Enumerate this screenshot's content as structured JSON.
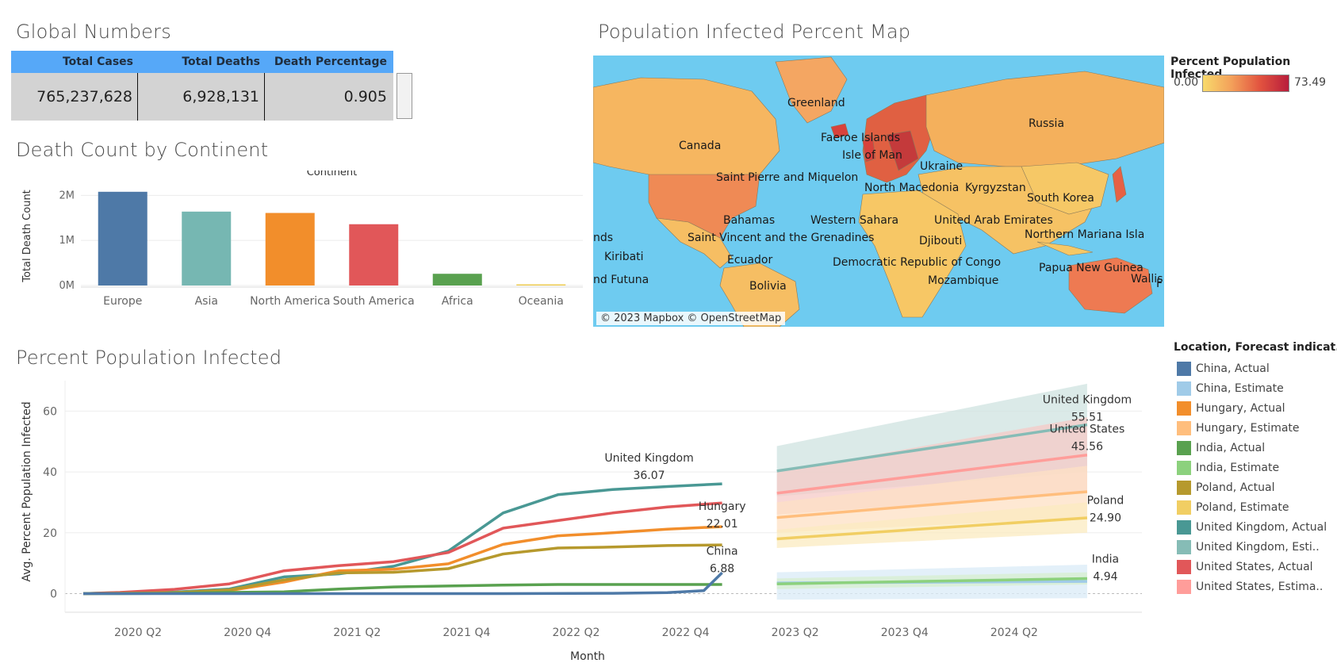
{
  "titles": {
    "global": "Global Numbers",
    "continent": "Death Count by Continent",
    "map": "Population Infected Percent Map",
    "infected": "Percent Population Infected"
  },
  "global_numbers": {
    "headers": [
      "Total Cases",
      "Total Deaths",
      "Death Percentage"
    ],
    "values": [
      "765,237,628",
      "6,928,131",
      "0.905"
    ]
  },
  "map": {
    "labels": [
      "Greenland",
      "Faeroe Islands",
      "Canada",
      "Russia",
      "Isle of Man",
      "Saint Pierre and Miquelon",
      "Ukraine",
      "North Macedonia",
      "Kyrgyzstan",
      "South Korea",
      "Bahamas",
      "Western Sahara",
      "United Arab Emirates",
      "nds",
      "Saint Vincent and the Grenadines",
      "Djibouti",
      "Northern Mariana Isla",
      "Kiribati",
      "Ecuador",
      "Democratic Republic of Congo",
      "Papua New Guinea",
      "nd Futuna",
      "Bolivia",
      "Mozambique",
      "Wallis a",
      "F"
    ],
    "credit": "© 2023 Mapbox © OpenStreetMap",
    "legend_title": "Percent Population Infected",
    "legend_min": "0.00",
    "legend_max": "73.49",
    "colors": {
      "low": "#f8da6c",
      "mid": "#e2533f",
      "high": "#b81d3c",
      "ocean": "#6ecbf0"
    }
  },
  "legend": {
    "title": "Location, Forecast indicat..",
    "items": [
      {
        "label": "China, Actual",
        "color": "#4e79a7"
      },
      {
        "label": "China, Estimate",
        "color": "#a0cbe8"
      },
      {
        "label": "Hungary, Actual",
        "color": "#f28e2b"
      },
      {
        "label": "Hungary, Estimate",
        "color": "#ffbe7d"
      },
      {
        "label": "India, Actual",
        "color": "#59a14f"
      },
      {
        "label": "India, Estimate",
        "color": "#8cd17d"
      },
      {
        "label": "Poland, Actual",
        "color": "#b6992d"
      },
      {
        "label": "Poland, Estimate",
        "color": "#f1ce63"
      },
      {
        "label": "United Kingdom, Actual",
        "color": "#499894"
      },
      {
        "label": "United Kingdom, Esti..",
        "color": "#86bcb6"
      },
      {
        "label": "United States, Actual",
        "color": "#e15759"
      },
      {
        "label": "United States, Estima..",
        "color": "#ff9d9a"
      }
    ]
  },
  "chart_data": [
    {
      "type": "bar",
      "title": "Continent",
      "ylabel": "Total Death Count",
      "categories": [
        "Europe",
        "Asia",
        "North America",
        "South America",
        "Africa",
        "Oceania"
      ],
      "values": [
        2080000,
        1640000,
        1610000,
        1360000,
        260000,
        25000
      ],
      "colors": [
        "#4e79a7",
        "#76b7b2",
        "#f28e2b",
        "#e15759",
        "#59a14f",
        "#edc948"
      ],
      "ylim": [
        0,
        2200000
      ],
      "yticks": [
        0,
        1000000,
        2000000
      ],
      "ytick_labels": [
        "0M",
        "1M",
        "2M"
      ]
    },
    {
      "type": "line",
      "xlabel": "Month",
      "ylabel": "Avg. Percent Population Infected",
      "x_tick_labels": [
        "2020 Q2",
        "2020 Q4",
        "2021 Q2",
        "2021 Q4",
        "2022 Q2",
        "2022 Q4",
        "2023 Q2",
        "2023 Q4",
        "2024 Q2"
      ],
      "ylim": [
        -3,
        70
      ],
      "yticks": [
        0,
        20,
        40,
        60
      ],
      "actual_series": [
        {
          "name": "United Kingdom, Actual",
          "color": "#499894",
          "points": [
            [
              "2020-02",
              0
            ],
            [
              "2020-04",
              0.3
            ],
            [
              "2020-07",
              0.5
            ],
            [
              "2020-10",
              1.5
            ],
            [
              "2021-01",
              5.5
            ],
            [
              "2021-04",
              6.5
            ],
            [
              "2021-07",
              9
            ],
            [
              "2021-10",
              14
            ],
            [
              "2022-01",
              26.5
            ],
            [
              "2022-04",
              32.5
            ],
            [
              "2022-07",
              34.2
            ],
            [
              "2022-10",
              35.2
            ],
            [
              "2023-01",
              36.07
            ]
          ]
        },
        {
          "name": "United States, Actual",
          "color": "#e15759",
          "points": [
            [
              "2020-02",
              0
            ],
            [
              "2020-04",
              0.4
            ],
            [
              "2020-07",
              1.4
            ],
            [
              "2020-10",
              3.2
            ],
            [
              "2021-01",
              7.5
            ],
            [
              "2021-04",
              9.2
            ],
            [
              "2021-07",
              10.5
            ],
            [
              "2021-10",
              13.5
            ],
            [
              "2022-01",
              21.5
            ],
            [
              "2022-04",
              24
            ],
            [
              "2022-07",
              26.5
            ],
            [
              "2022-10",
              28.5
            ],
            [
              "2023-01",
              29.8
            ]
          ]
        },
        {
          "name": "Hungary, Actual",
          "color": "#f28e2b",
          "points": [
            [
              "2020-02",
              0
            ],
            [
              "2020-04",
              0.1
            ],
            [
              "2020-07",
              0.3
            ],
            [
              "2020-10",
              1
            ],
            [
              "2021-01",
              3.8
            ],
            [
              "2021-04",
              7.5
            ],
            [
              "2021-07",
              8
            ],
            [
              "2021-10",
              9.8
            ],
            [
              "2022-01",
              16.2
            ],
            [
              "2022-04",
              19
            ],
            [
              "2022-07",
              20
            ],
            [
              "2022-10",
              21.2
            ],
            [
              "2023-01",
              22.01
            ]
          ]
        },
        {
          "name": "Poland, Actual",
          "color": "#b6992d",
          "points": [
            [
              "2020-02",
              0
            ],
            [
              "2020-04",
              0.1
            ],
            [
              "2020-07",
              0.3
            ],
            [
              "2020-10",
              1.2
            ],
            [
              "2021-01",
              4.5
            ],
            [
              "2021-04",
              6.8
            ],
            [
              "2021-07",
              7
            ],
            [
              "2021-10",
              8.2
            ],
            [
              "2022-01",
              13
            ],
            [
              "2022-04",
              15
            ],
            [
              "2022-07",
              15.3
            ],
            [
              "2022-10",
              15.8
            ],
            [
              "2023-01",
              16
            ]
          ]
        },
        {
          "name": "India, Actual",
          "color": "#59a14f",
          "points": [
            [
              "2020-02",
              0
            ],
            [
              "2020-04",
              0
            ],
            [
              "2020-07",
              0.1
            ],
            [
              "2020-10",
              0.4
            ],
            [
              "2021-01",
              0.6
            ],
            [
              "2021-04",
              1.5
            ],
            [
              "2021-07",
              2.2
            ],
            [
              "2021-10",
              2.5
            ],
            [
              "2022-01",
              2.8
            ],
            [
              "2022-04",
              3
            ],
            [
              "2022-07",
              3
            ],
            [
              "2022-10",
              3
            ],
            [
              "2023-01",
              3
            ]
          ]
        },
        {
          "name": "China, Actual",
          "color": "#4e79a7",
          "points": [
            [
              "2020-02",
              0
            ],
            [
              "2020-07",
              0
            ],
            [
              "2021-01",
              0
            ],
            [
              "2021-07",
              0
            ],
            [
              "2022-01",
              0
            ],
            [
              "2022-07",
              0.1
            ],
            [
              "2022-10",
              0.3
            ],
            [
              "2022-12",
              1
            ],
            [
              "2023-01",
              6.88
            ]
          ]
        }
      ],
      "estimate_series": [
        {
          "name": "United Kingdom, Estimate",
          "color": "#86bcb6",
          "band": "#cfe3e0",
          "start": [
            "2023-04",
            40.3
          ],
          "end": [
            "2024-09",
            55.51
          ],
          "band_start": [
            32,
            48.5
          ],
          "band_end": [
            40,
            69
          ]
        },
        {
          "name": "United States, Estimate",
          "color": "#ff9d9a",
          "band": "#f6c9c7",
          "start": [
            "2023-04",
            33
          ],
          "end": [
            "2024-09",
            45.56
          ],
          "band_start": [
            26,
            40
          ],
          "band_end": [
            33,
            58
          ]
        },
        {
          "name": "Hungary, Estimate",
          "color": "#ffbe7d",
          "band": "#fde0c4",
          "start": [
            "2023-04",
            25
          ],
          "end": [
            "2024-09",
            33.5
          ],
          "band_start": [
            20,
            30
          ],
          "band_end": [
            25,
            42
          ]
        },
        {
          "name": "Poland, Estimate",
          "color": "#f1ce63",
          "band": "#fbebc0",
          "start": [
            "2023-04",
            18
          ],
          "end": [
            "2024-09",
            24.9
          ],
          "band_start": [
            15,
            21
          ],
          "band_end": [
            20,
            30
          ]
        },
        {
          "name": "China, Estimate",
          "color": "#a0cbe8",
          "band": "#d9ebf7",
          "start": [
            "2023-04",
            3.5
          ],
          "end": [
            "2024-09",
            4.0
          ],
          "band_start": [
            -2,
            7
          ],
          "band_end": [
            -1.5,
            9.5
          ]
        },
        {
          "name": "India, Estimate",
          "color": "#8cd17d",
          "band": "#d7efcf",
          "start": [
            "2023-04",
            3.2
          ],
          "end": [
            "2024-09",
            4.94
          ],
          "band_start": [
            1.5,
            5
          ],
          "band_end": [
            3,
            7
          ]
        }
      ],
      "annotations": [
        {
          "name": "United Kingdom",
          "value": "36.07"
        },
        {
          "name": "Hungary",
          "value": "22.01"
        },
        {
          "name": "China",
          "value": "6.88"
        },
        {
          "name": "United Kingdom",
          "value": "55.51"
        },
        {
          "name": "United States",
          "value": "45.56"
        },
        {
          "name": "Poland",
          "value": "24.90"
        },
        {
          "name": "India",
          "value": "4.94"
        }
      ]
    }
  ]
}
